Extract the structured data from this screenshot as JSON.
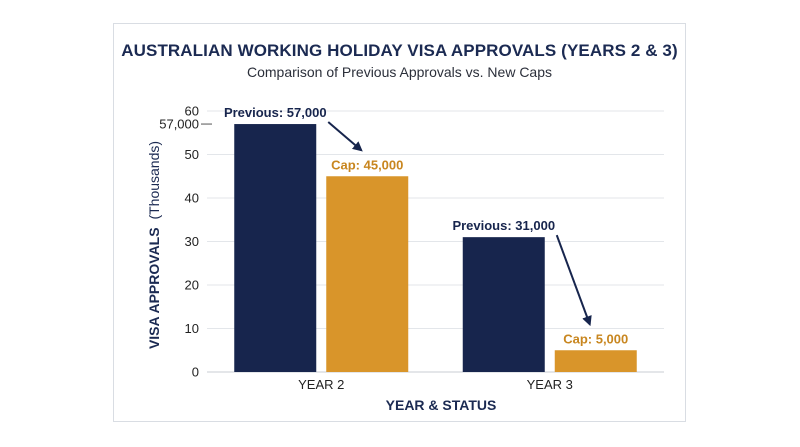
{
  "chart_data": {
    "type": "bar",
    "title": "AUSTRALIAN WORKING HOLIDAY VISA APPROVALS (YEARS 2 & 3)",
    "subtitle": "Comparison of Previous Approvals vs. New Caps",
    "xlabel": "YEAR & STATUS",
    "ylabel_bold": "VISA APPROVALS",
    "ylabel_unit": "(Thousands)",
    "categories": [
      "YEAR 2",
      "YEAR 3"
    ],
    "ylim": [
      0,
      60
    ],
    "yticks": [
      0,
      10,
      20,
      30,
      40,
      50,
      60
    ],
    "extra_tick_label": "57,000",
    "extra_tick_value": 57,
    "grid": true,
    "series": [
      {
        "values": [
          57,
          31
        ],
        "color": "#17254d",
        "labels": [
          "Previous: 57,000",
          "Previous: 31,000"
        ]
      },
      {
        "values": [
          45,
          5
        ],
        "color": "#d9952a",
        "labels": [
          "Cap: 45,000",
          "Cap: 5,000"
        ]
      }
    ]
  }
}
